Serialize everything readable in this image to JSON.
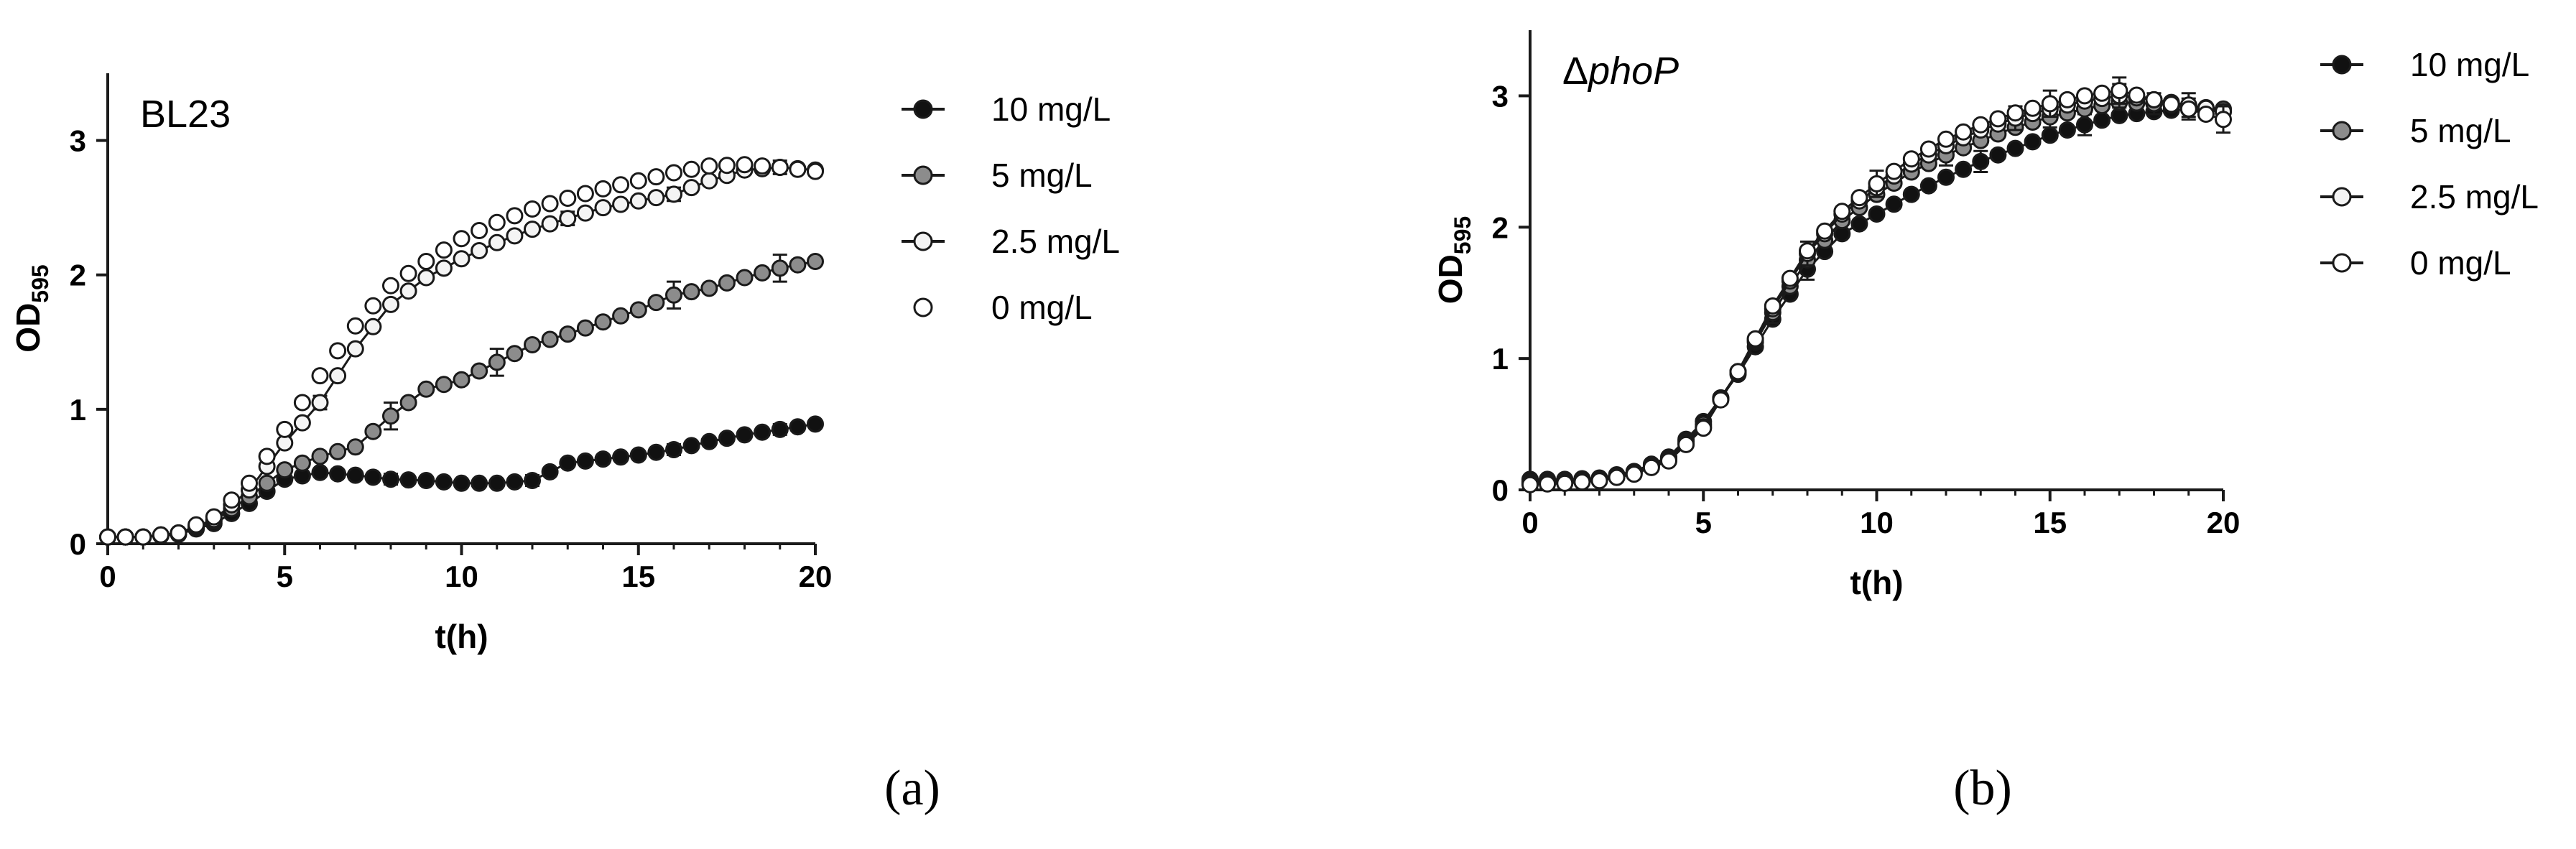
{
  "colors": {
    "fill_10": "#111111",
    "fill_5": "#8c8c8c",
    "fill_2_5": "#f4f4f4",
    "fill_0": "#ffffff",
    "stroke": "#1a1a1a"
  },
  "chart_data": [
    {
      "type": "line",
      "id": "a",
      "panel_label": "(a)",
      "title": "BL23",
      "title_italic": false,
      "title_prefix": "",
      "xlabel": "t(h)",
      "ylabel_main": "OD",
      "ylabel_sub": "595",
      "xlim": [
        0,
        20
      ],
      "ylim": [
        0,
        3.5
      ],
      "xticks": [
        0,
        5,
        10,
        15,
        20
      ],
      "yticks": [
        0,
        1,
        2,
        3
      ],
      "grid": false,
      "legend_position": "right",
      "x_knots": [
        0,
        1,
        2,
        3,
        4,
        5,
        6,
        7,
        8,
        9,
        10,
        11,
        12,
        13,
        14,
        15,
        16,
        17,
        18,
        19,
        20
      ],
      "series": [
        {
          "name": "10 mg/L",
          "fill_key": "fill_10",
          "line": true,
          "y_knots": [
            0.05,
            0.05,
            0.07,
            0.15,
            0.3,
            0.48,
            0.53,
            0.51,
            0.48,
            0.47,
            0.45,
            0.45,
            0.47,
            0.6,
            0.63,
            0.66,
            0.7,
            0.76,
            0.81,
            0.85,
            0.89
          ],
          "error_at": [
            8,
            12,
            16,
            19
          ],
          "error_size": 0.04
        },
        {
          "name": "5 mg/L",
          "fill_key": "fill_5",
          "line": true,
          "y_knots": [
            0.05,
            0.05,
            0.08,
            0.17,
            0.35,
            0.55,
            0.65,
            0.72,
            0.95,
            1.15,
            1.22,
            1.35,
            1.48,
            1.56,
            1.65,
            1.74,
            1.85,
            1.9,
            1.98,
            2.05,
            2.1
          ],
          "error_at": [
            8,
            11,
            16,
            19
          ],
          "error_size": 0.1
        },
        {
          "name": "2.5 mg/L",
          "fill_key": "fill_2_5",
          "line": true,
          "y_knots": [
            0.05,
            0.05,
            0.08,
            0.18,
            0.4,
            0.75,
            1.05,
            1.45,
            1.78,
            1.98,
            2.12,
            2.24,
            2.34,
            2.42,
            2.5,
            2.55,
            2.6,
            2.7,
            2.78,
            2.8,
            2.78
          ],
          "error_at": [
            6,
            13,
            16,
            19
          ],
          "error_size": 0.05
        },
        {
          "name": "0 mg/L",
          "fill_key": "fill_0",
          "line": false,
          "y_knots": [
            0.05,
            0.05,
            0.08,
            0.2,
            0.45,
            0.85,
            1.25,
            1.62,
            1.92,
            2.1,
            2.27,
            2.39,
            2.49,
            2.57,
            2.64,
            2.7,
            2.76,
            2.81,
            2.82,
            2.8,
            2.77
          ],
          "error_at": [],
          "error_size": 0.04
        }
      ]
    },
    {
      "type": "line",
      "id": "b",
      "panel_label": "(b)",
      "title": "phoP",
      "title_italic": true,
      "title_prefix": "Δ",
      "xlabel": "t(h)",
      "ylabel_main": "OD",
      "ylabel_sub": "595",
      "xlim": [
        0,
        20
      ],
      "ylim": [
        0,
        3.5
      ],
      "xticks": [
        0,
        5,
        10,
        15,
        20
      ],
      "yticks": [
        0,
        1,
        2,
        3
      ],
      "grid": false,
      "legend_position": "right",
      "x_knots": [
        0,
        1,
        2,
        3,
        4,
        5,
        6,
        7,
        8,
        9,
        10,
        11,
        12,
        13,
        14,
        15,
        16,
        17,
        18,
        19,
        20
      ],
      "series": [
        {
          "name": "10 mg/L",
          "fill_key": "fill_10",
          "line": true,
          "y_knots": [
            0.08,
            0.08,
            0.09,
            0.14,
            0.25,
            0.52,
            0.88,
            1.3,
            1.68,
            1.95,
            2.1,
            2.25,
            2.38,
            2.5,
            2.6,
            2.7,
            2.78,
            2.85,
            2.88,
            2.9,
            2.88
          ],
          "error_at": [
            8,
            13,
            16,
            19
          ],
          "error_size": 0.08
        },
        {
          "name": "5 mg/L",
          "fill_key": "fill_5",
          "line": true,
          "y_knots": [
            0.06,
            0.07,
            0.08,
            0.13,
            0.24,
            0.5,
            0.9,
            1.35,
            1.75,
            2.05,
            2.25,
            2.42,
            2.55,
            2.66,
            2.76,
            2.84,
            2.9,
            2.95,
            2.94,
            2.92,
            2.9
          ],
          "error_at": [
            7,
            12,
            15,
            18
          ],
          "error_size": 0.08
        },
        {
          "name": "2.5 mg/L",
          "fill_key": "fill_2_5",
          "line": true,
          "y_knots": [
            0.05,
            0.06,
            0.08,
            0.13,
            0.23,
            0.48,
            0.9,
            1.38,
            1.8,
            2.1,
            2.3,
            2.48,
            2.62,
            2.74,
            2.83,
            2.9,
            2.96,
            3.0,
            2.97,
            2.93,
            2.88
          ],
          "error_at": [
            8,
            14,
            17,
            19
          ],
          "error_size": 0.09
        },
        {
          "name": "0 mg/L",
          "fill_key": "fill_0",
          "line": true,
          "y_knots": [
            0.04,
            0.05,
            0.07,
            0.12,
            0.22,
            0.47,
            0.9,
            1.4,
            1.82,
            2.12,
            2.33,
            2.52,
            2.67,
            2.78,
            2.87,
            2.94,
            3.0,
            3.04,
            2.97,
            2.9,
            2.82
          ],
          "error_at": [
            10,
            15,
            17,
            20
          ],
          "error_size": 0.1
        }
      ]
    }
  ]
}
